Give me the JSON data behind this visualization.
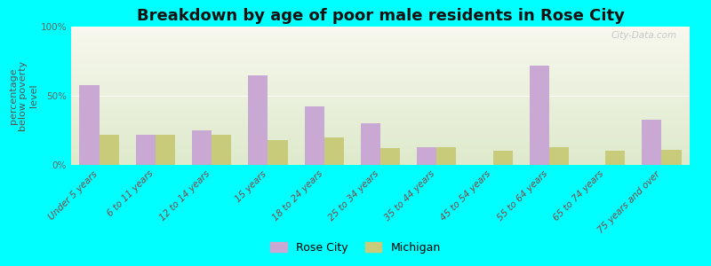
{
  "title": "Breakdown by age of poor male residents in Rose City",
  "ylabel": "percentage\nbelow poverty\nlevel",
  "categories": [
    "Under 5 years",
    "6 to 11 years",
    "12 to 14 years",
    "15 years",
    "18 to 24 years",
    "25 to 34 years",
    "35 to 44 years",
    "45 to 54 years",
    "55 to 64 years",
    "65 to 74 years",
    "75 years and over"
  ],
  "rose_city": [
    58,
    22,
    25,
    65,
    42,
    30,
    13,
    0,
    72,
    0,
    33
  ],
  "michigan": [
    22,
    22,
    22,
    18,
    20,
    12,
    13,
    10,
    13,
    10,
    11
  ],
  "rose_city_color": "#c9a8d4",
  "michigan_color": "#c8cc7a",
  "background_color": "#00ffff",
  "plot_bg_top": "#f8f8ee",
  "plot_bg_bottom": "#deeacc",
  "ylim": [
    0,
    100
  ],
  "yticks": [
    0,
    50,
    100
  ],
  "ytick_labels": [
    "0%",
    "50%",
    "100%"
  ],
  "bar_width": 0.35,
  "title_fontsize": 13,
  "axis_label_fontsize": 8,
  "tick_fontsize": 7.5,
  "legend_fontsize": 9,
  "watermark": "City-Data.com"
}
